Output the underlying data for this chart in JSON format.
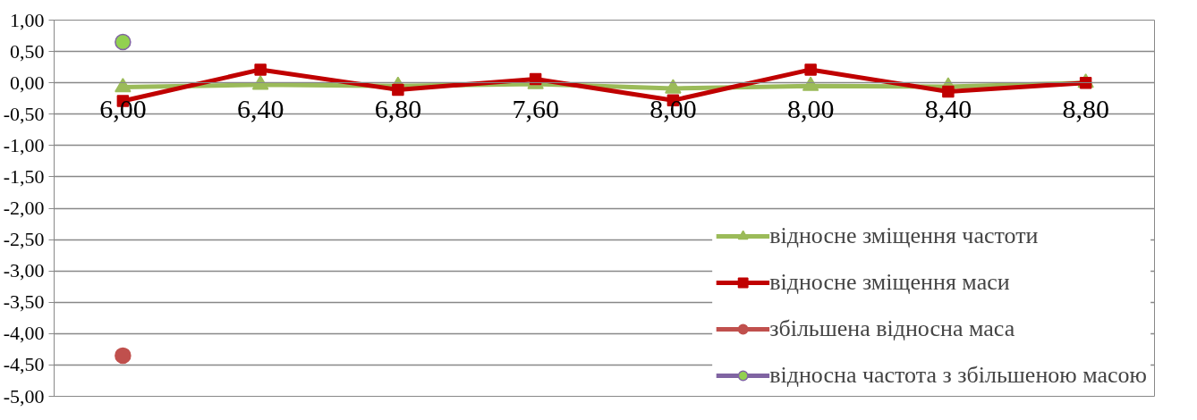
{
  "chart_data": {
    "type": "line",
    "categories": [
      "6,00",
      "6,40",
      "6,80",
      "7,60",
      "8,00",
      "8,00",
      "8,40",
      "8,80"
    ],
    "series": [
      {
        "name": "відносне зміщення частоти",
        "color": "#9bbb59",
        "marker": "triangle",
        "values": [
          -0.07,
          -0.03,
          -0.05,
          -0.02,
          -0.09,
          -0.05,
          -0.06,
          0
        ]
      },
      {
        "name": "відносне зміщення маси",
        "color": "#c00000",
        "marker": "square",
        "values": [
          -0.29,
          0.21,
          -0.11,
          0.06,
          -0.28,
          0.21,
          -0.14,
          0
        ]
      },
      {
        "name": "збільшена відносна маса",
        "color": "#c0504d",
        "marker": "circle",
        "values": [
          -4.35,
          null,
          null,
          null,
          null,
          null,
          null,
          null
        ]
      },
      {
        "name": "відносна частота з збільшеною масою",
        "color": "#8064a2",
        "colors": [
          "#92d050",
          null,
          null,
          null,
          null,
          null,
          null,
          null
        ],
        "marker": "circle",
        "values": [
          0.65,
          null,
          null,
          null,
          null,
          null,
          null,
          null
        ]
      }
    ],
    "ylim": [
      -5,
      1
    ],
    "yticks": [
      {
        "value": -5,
        "label": "-5,00"
      },
      {
        "value": -4.5,
        "label": "-4,50"
      },
      {
        "value": -4,
        "label": "-4,00"
      },
      {
        "value": -3.5,
        "label": "-3,50"
      },
      {
        "value": -3,
        "label": "-3,00"
      },
      {
        "value": -2.5,
        "label": "-2,50"
      },
      {
        "value": -2,
        "label": "-2,00"
      },
      {
        "value": -1.5,
        "label": "-1,50"
      },
      {
        "value": -1,
        "label": "-1,00"
      },
      {
        "value": -0.5,
        "label": "-0,50"
      },
      {
        "value": 0,
        "label": "0,00"
      },
      {
        "value": 0.5,
        "label": "0,50"
      },
      {
        "value": 1,
        "label": "1,00"
      }
    ],
    "grid": "y",
    "legend": "bottom right",
    "line_style": "solid"
  }
}
